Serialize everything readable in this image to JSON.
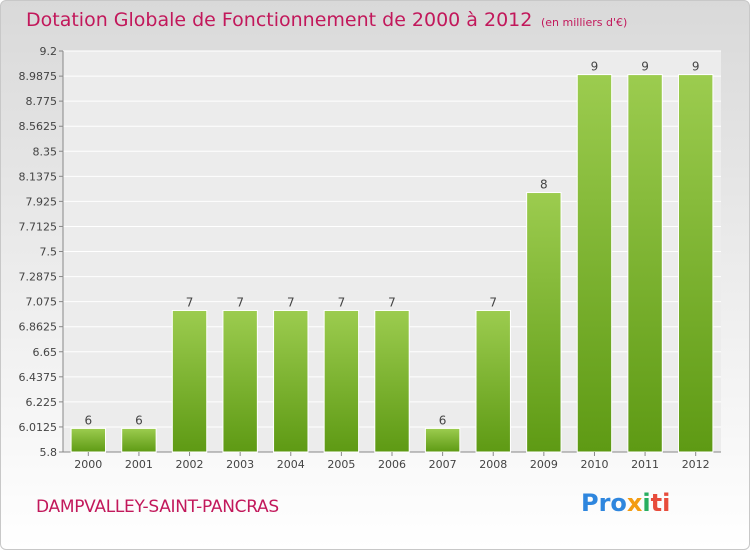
{
  "header": {
    "title": "Dotation Globale de Fonctionnement de 2000 à 2012",
    "unit_note": "(en milliers d'€)"
  },
  "footer": {
    "commune": "DAMPVALLEY-SAINT-PANCRAS",
    "logo_parts": [
      "Pro",
      "x",
      "i",
      "ti"
    ]
  },
  "colors": {
    "title": "#c2185b",
    "bar_top": "#9ccc4f",
    "bar_bottom": "#5e9a14"
  },
  "chart_data": {
    "type": "bar",
    "title": "Dotation Globale de Fonctionnement de 2000 à 2012",
    "xlabel": "",
    "ylabel": "",
    "categories": [
      "2000",
      "2001",
      "2002",
      "2003",
      "2004",
      "2005",
      "2006",
      "2007",
      "2008",
      "2009",
      "2010",
      "2011",
      "2012"
    ],
    "values": [
      6,
      6,
      7,
      7,
      7,
      7,
      7,
      6,
      7,
      8,
      9,
      9,
      9
    ],
    "data_labels": [
      "6",
      "6",
      "7",
      "7",
      "7",
      "7",
      "7",
      "6",
      "7",
      "8",
      "9",
      "9",
      "9"
    ],
    "ylim": [
      5.8,
      9.2
    ],
    "yticks": [
      "5.8",
      "6.0125",
      "6.225",
      "6.4375",
      "6.65",
      "6.8625",
      "7.075",
      "7.2875",
      "7.5",
      "7.7125",
      "7.925",
      "8.1375",
      "8.35",
      "8.5625",
      "8.775",
      "8.9875",
      "9.2"
    ],
    "grid": true,
    "legend": "none"
  }
}
